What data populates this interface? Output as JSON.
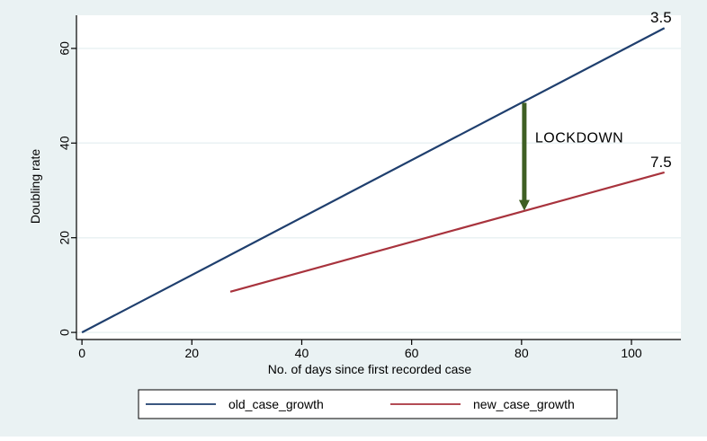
{
  "chart_data": {
    "type": "line",
    "title": "",
    "xlabel": "No. of days since first recorded case",
    "ylabel": "Doubling rate",
    "xlim": [
      -1,
      109
    ],
    "ylim": [
      -1.5,
      67
    ],
    "x_ticks": [
      0,
      20,
      40,
      60,
      80,
      100
    ],
    "y_ticks": [
      0,
      20,
      40,
      60
    ],
    "grid": true,
    "legend_placement": "bottom",
    "series": [
      {
        "name": "old_case_growth",
        "color": "#1f3f6e",
        "x": [
          0,
          106
        ],
        "y": [
          0,
          64.3
        ],
        "end_label": "3.5"
      },
      {
        "name": "new_case_growth",
        "color": "#a8333d",
        "x": [
          27,
          106
        ],
        "y": [
          8.6,
          33.8
        ],
        "end_label": "7.5"
      }
    ],
    "annotations": [
      {
        "text": "LOCKDOWN",
        "type": "arrow",
        "color": "#3f5f24",
        "x": 80.5,
        "y_from": 48.5,
        "y_to": 25.7
      }
    ]
  },
  "colors": {
    "outer_background": "#eaf2f3",
    "plot_background": "#ffffff",
    "gridline": "#eaf2f3",
    "axis": "#000000"
  }
}
